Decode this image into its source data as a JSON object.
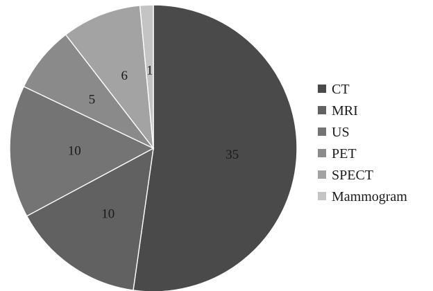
{
  "chart_data": {
    "type": "pie",
    "title": "",
    "categories": [
      "CT",
      "MRI",
      "US",
      "PET",
      "SPECT",
      "Mammogram"
    ],
    "values": [
      35,
      10,
      10,
      5,
      6,
      1
    ],
    "colors": [
      "#4a4a4a",
      "#616161",
      "#747474",
      "#8a8a8a",
      "#a3a3a3",
      "#c4c4c4"
    ],
    "start": "12 o'clock",
    "direction": "clockwise",
    "data_labels": true,
    "legend_placement": "right"
  }
}
